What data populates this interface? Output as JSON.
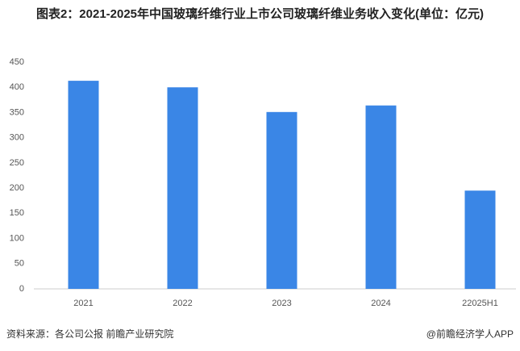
{
  "chart_data": {
    "type": "bar",
    "title": "图表2：2021-2025年中国玻璃纤维行业上市公司玻璃纤维业务收入变化(单位：亿元)",
    "categories": [
      "2021",
      "2022",
      "2023",
      "2024",
      "22025H1"
    ],
    "values": [
      413,
      400,
      351,
      364,
      195
    ],
    "color": "#3a86e6",
    "ylim": [
      0,
      450
    ],
    "yticks": [
      0,
      50,
      100,
      150,
      200,
      250,
      300,
      350,
      400,
      450
    ],
    "grid": false,
    "source": "资料来源：各公司公报 前瞻产业研究院",
    "credit": "@前瞻经济学人APP"
  }
}
